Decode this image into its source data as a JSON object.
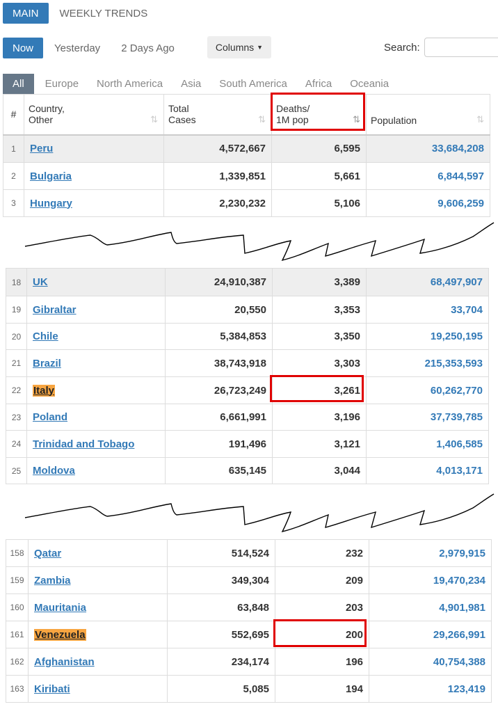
{
  "top_tabs": [
    {
      "label": "MAIN",
      "active": true
    },
    {
      "label": "WEEKLY TRENDS",
      "active": false
    }
  ],
  "time_buttons": [
    {
      "label": "Now",
      "active": true
    },
    {
      "label": "Yesterday",
      "active": false
    },
    {
      "label": "2 Days Ago",
      "active": false
    }
  ],
  "columns_button": "Columns",
  "search": {
    "label": "Search:",
    "value": ""
  },
  "regions": [
    "All",
    "Europe",
    "North America",
    "Asia",
    "South America",
    "Africa",
    "Oceania"
  ],
  "columns": {
    "rank": "#",
    "country_l1": "Country,",
    "country_l2": "Other",
    "cases_l1": "Total",
    "cases_l2": "Cases",
    "deaths_l1": "Deaths/",
    "deaths_l2": "1M pop",
    "population": "Population"
  },
  "block1": [
    {
      "rank": "1",
      "country": "Peru",
      "cases": "4,572,667",
      "deaths": "6,595",
      "pop": "33,684,208"
    },
    {
      "rank": "2",
      "country": "Bulgaria",
      "cases": "1,339,851",
      "deaths": "5,661",
      "pop": "6,844,597"
    },
    {
      "rank": "3",
      "country": "Hungary",
      "cases": "2,230,232",
      "deaths": "5,106",
      "pop": "9,606,259"
    }
  ],
  "block2": [
    {
      "rank": "18",
      "country": "UK",
      "cases": "24,910,387",
      "deaths": "3,389",
      "pop": "68,497,907"
    },
    {
      "rank": "19",
      "country": "Gibraltar",
      "cases": "20,550",
      "deaths": "3,353",
      "pop": "33,704"
    },
    {
      "rank": "20",
      "country": "Chile",
      "cases": "5,384,853",
      "deaths": "3,350",
      "pop": "19,250,195"
    },
    {
      "rank": "21",
      "country": "Brazil",
      "cases": "38,743,918",
      "deaths": "3,303",
      "pop": "215,353,593"
    },
    {
      "rank": "22",
      "country": "Italy",
      "cases": "26,723,249",
      "deaths": "3,261",
      "pop": "60,262,770"
    },
    {
      "rank": "23",
      "country": "Poland",
      "cases": "6,661,991",
      "deaths": "3,196",
      "pop": "37,739,785"
    },
    {
      "rank": "24",
      "country": "Trinidad and Tobago",
      "cases": "191,496",
      "deaths": "3,121",
      "pop": "1,406,585"
    },
    {
      "rank": "25",
      "country": "Moldova",
      "cases": "635,145",
      "deaths": "3,044",
      "pop": "4,013,171"
    }
  ],
  "block3": [
    {
      "rank": "158",
      "country": "Qatar",
      "cases": "514,524",
      "deaths": "232",
      "pop": "2,979,915"
    },
    {
      "rank": "159",
      "country": "Zambia",
      "cases": "349,304",
      "deaths": "209",
      "pop": "19,470,234"
    },
    {
      "rank": "160",
      "country": "Mauritania",
      "cases": "63,848",
      "deaths": "203",
      "pop": "4,901,981"
    },
    {
      "rank": "161",
      "country": "Venezuela",
      "cases": "552,695",
      "deaths": "200",
      "pop": "29,266,991"
    },
    {
      "rank": "162",
      "country": "Afghanistan",
      "cases": "234,174",
      "deaths": "196",
      "pop": "40,754,388"
    },
    {
      "rank": "163",
      "country": "Kiribati",
      "cases": "5,085",
      "deaths": "194",
      "pop": "123,419"
    }
  ],
  "highlight_color": "#f7a541",
  "accent_color": "#337ab7",
  "annotation_color": "#e00000"
}
